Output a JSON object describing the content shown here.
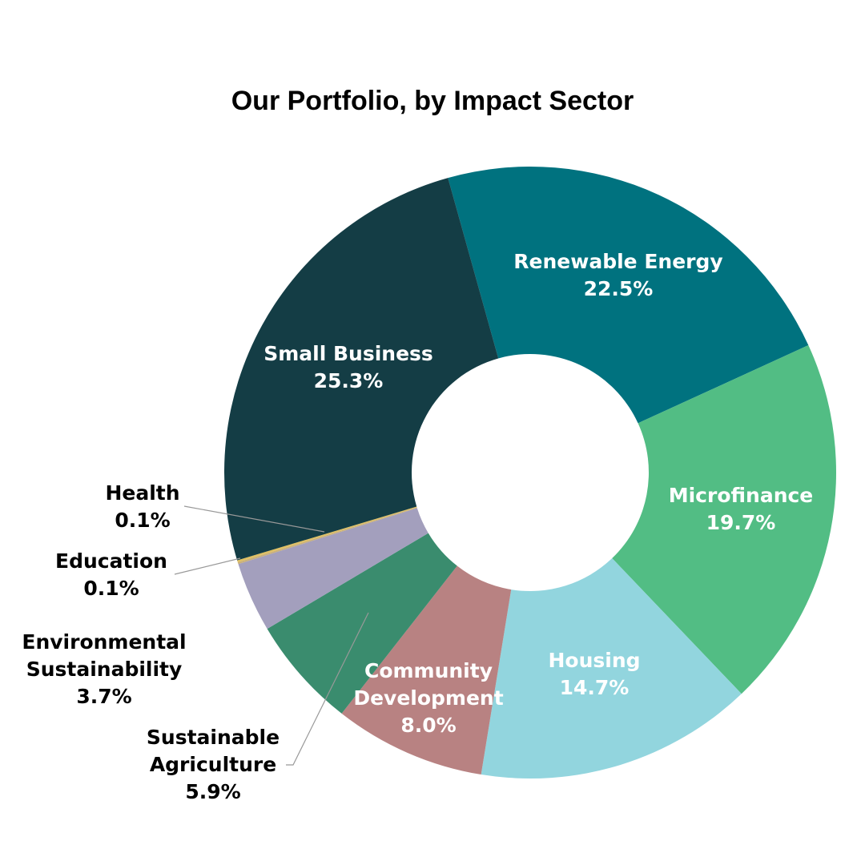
{
  "chart_data": {
    "type": "donut",
    "title": "Our Portfolio, by Impact Sector",
    "categories": [
      "Renewable Energy",
      "Microfinance",
      "Housing",
      "Community Development",
      "Sustainable Agriculture",
      "Environmental Sustainability",
      "Education",
      "Health",
      "Small Business"
    ],
    "values": [
      22.5,
      19.7,
      14.7,
      8.0,
      5.9,
      3.7,
      0.1,
      0.1,
      25.3
    ],
    "value_labels": [
      "22.5%",
      "19.7%",
      "14.7%",
      "8.0%",
      "5.9%",
      "3.7%",
      "0.1%",
      "0.1%",
      "25.3%"
    ],
    "colors": [
      "#00727f",
      "#52bd84",
      "#92d5de",
      "#b88282",
      "#3a8c6e",
      "#a39fbd",
      "#c9b07a",
      "#e0c060",
      "#143d45"
    ]
  }
}
